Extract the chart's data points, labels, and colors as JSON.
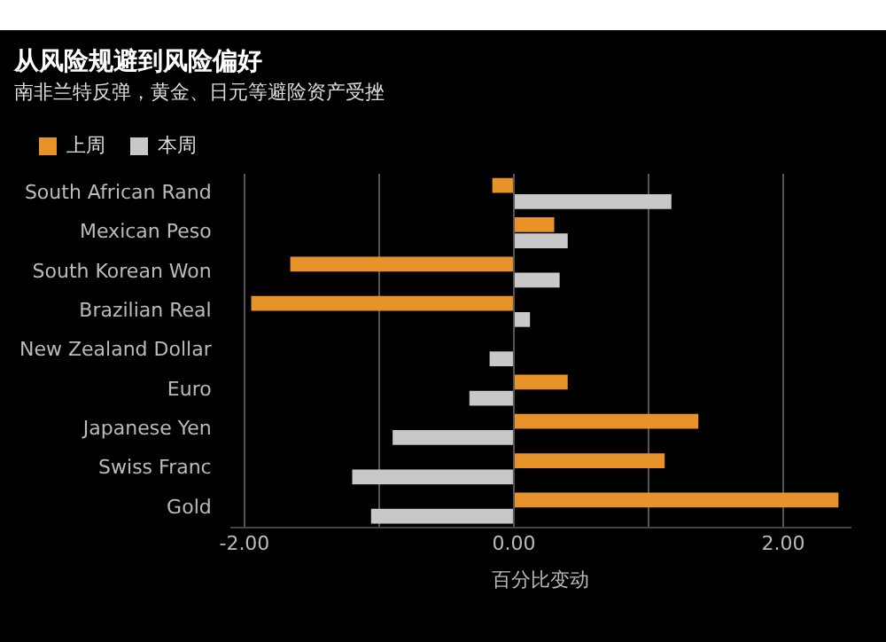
{
  "chart_data": {
    "type": "bar",
    "orientation": "horizontal",
    "title": "从风险规避到风险偏好",
    "subtitle": "南非兰特反弹，黄金、日元等避险资产受挫",
    "xlabel": "百分比变动",
    "categories": [
      "South African Rand",
      "Mexican Peso",
      "South Korean Won",
      "Brazilian Real",
      "New Zealand Dollar",
      "Euro",
      "Japanese Yen",
      "Swiss Franc",
      "Gold"
    ],
    "series": [
      {
        "name": "上周",
        "color": "#e8922a",
        "values": [
          -0.16,
          0.3,
          -1.66,
          -1.95,
          null,
          0.4,
          1.37,
          1.12,
          2.41
        ]
      },
      {
        "name": "本周",
        "color": "#c8c8c8",
        "values": [
          1.17,
          0.4,
          0.34,
          0.12,
          -0.18,
          -0.33,
          -0.9,
          -1.2,
          -1.06
        ]
      }
    ],
    "xlim": [
      -2.1,
      2.5
    ],
    "xticks": [
      {
        "value": -2,
        "label": "-2.00"
      },
      {
        "value": -1,
        "label": null
      },
      {
        "value": 0,
        "label": "0.00"
      },
      {
        "value": 1,
        "label": null
      },
      {
        "value": 2,
        "label": "2.00"
      }
    ],
    "grid": "x",
    "legend": "top left"
  }
}
